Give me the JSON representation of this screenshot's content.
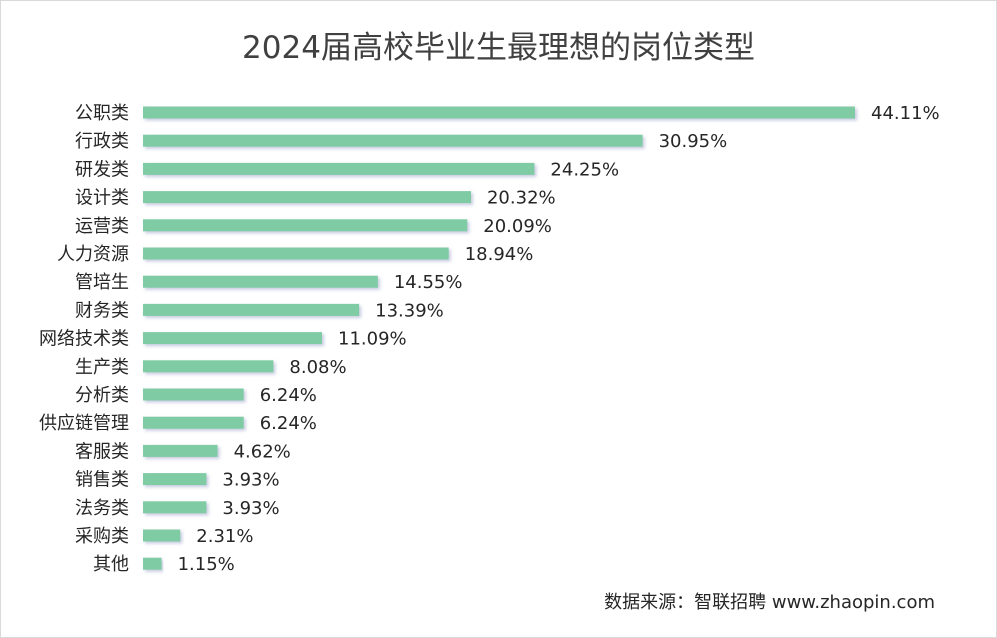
{
  "chart_data": {
    "type": "bar",
    "orientation": "horizontal",
    "title": "2024届高校毕业生最理想的岗位类型",
    "categories": [
      "公职类",
      "行政类",
      "研发类",
      "设计类",
      "运营类",
      "人力资源",
      "管培生",
      "财务类",
      "网络技术类",
      "生产类",
      "分析类",
      "供应链管理",
      "客服类",
      "销售类",
      "法务类",
      "采购类",
      "其他"
    ],
    "values": [
      44.11,
      30.95,
      24.25,
      20.32,
      20.09,
      18.94,
      14.55,
      13.39,
      11.09,
      8.08,
      6.24,
      6.24,
      4.62,
      3.93,
      3.93,
      2.31,
      1.15
    ],
    "value_labels": [
      "44.11%",
      "30.95%",
      "24.25%",
      "20.32%",
      "20.09%",
      "18.94%",
      "14.55%",
      "13.39%",
      "11.09%",
      "8.08%",
      "6.24%",
      "6.24%",
      "4.62%",
      "3.93%",
      "3.93%",
      "2.31%",
      "1.15%"
    ],
    "unit": "%",
    "xlim": [
      0,
      44.11
    ],
    "bar_color": "#7fcba4",
    "grid": false,
    "legend": "none",
    "source": "数据来源：智联招聘 www.zhaopin.com"
  }
}
